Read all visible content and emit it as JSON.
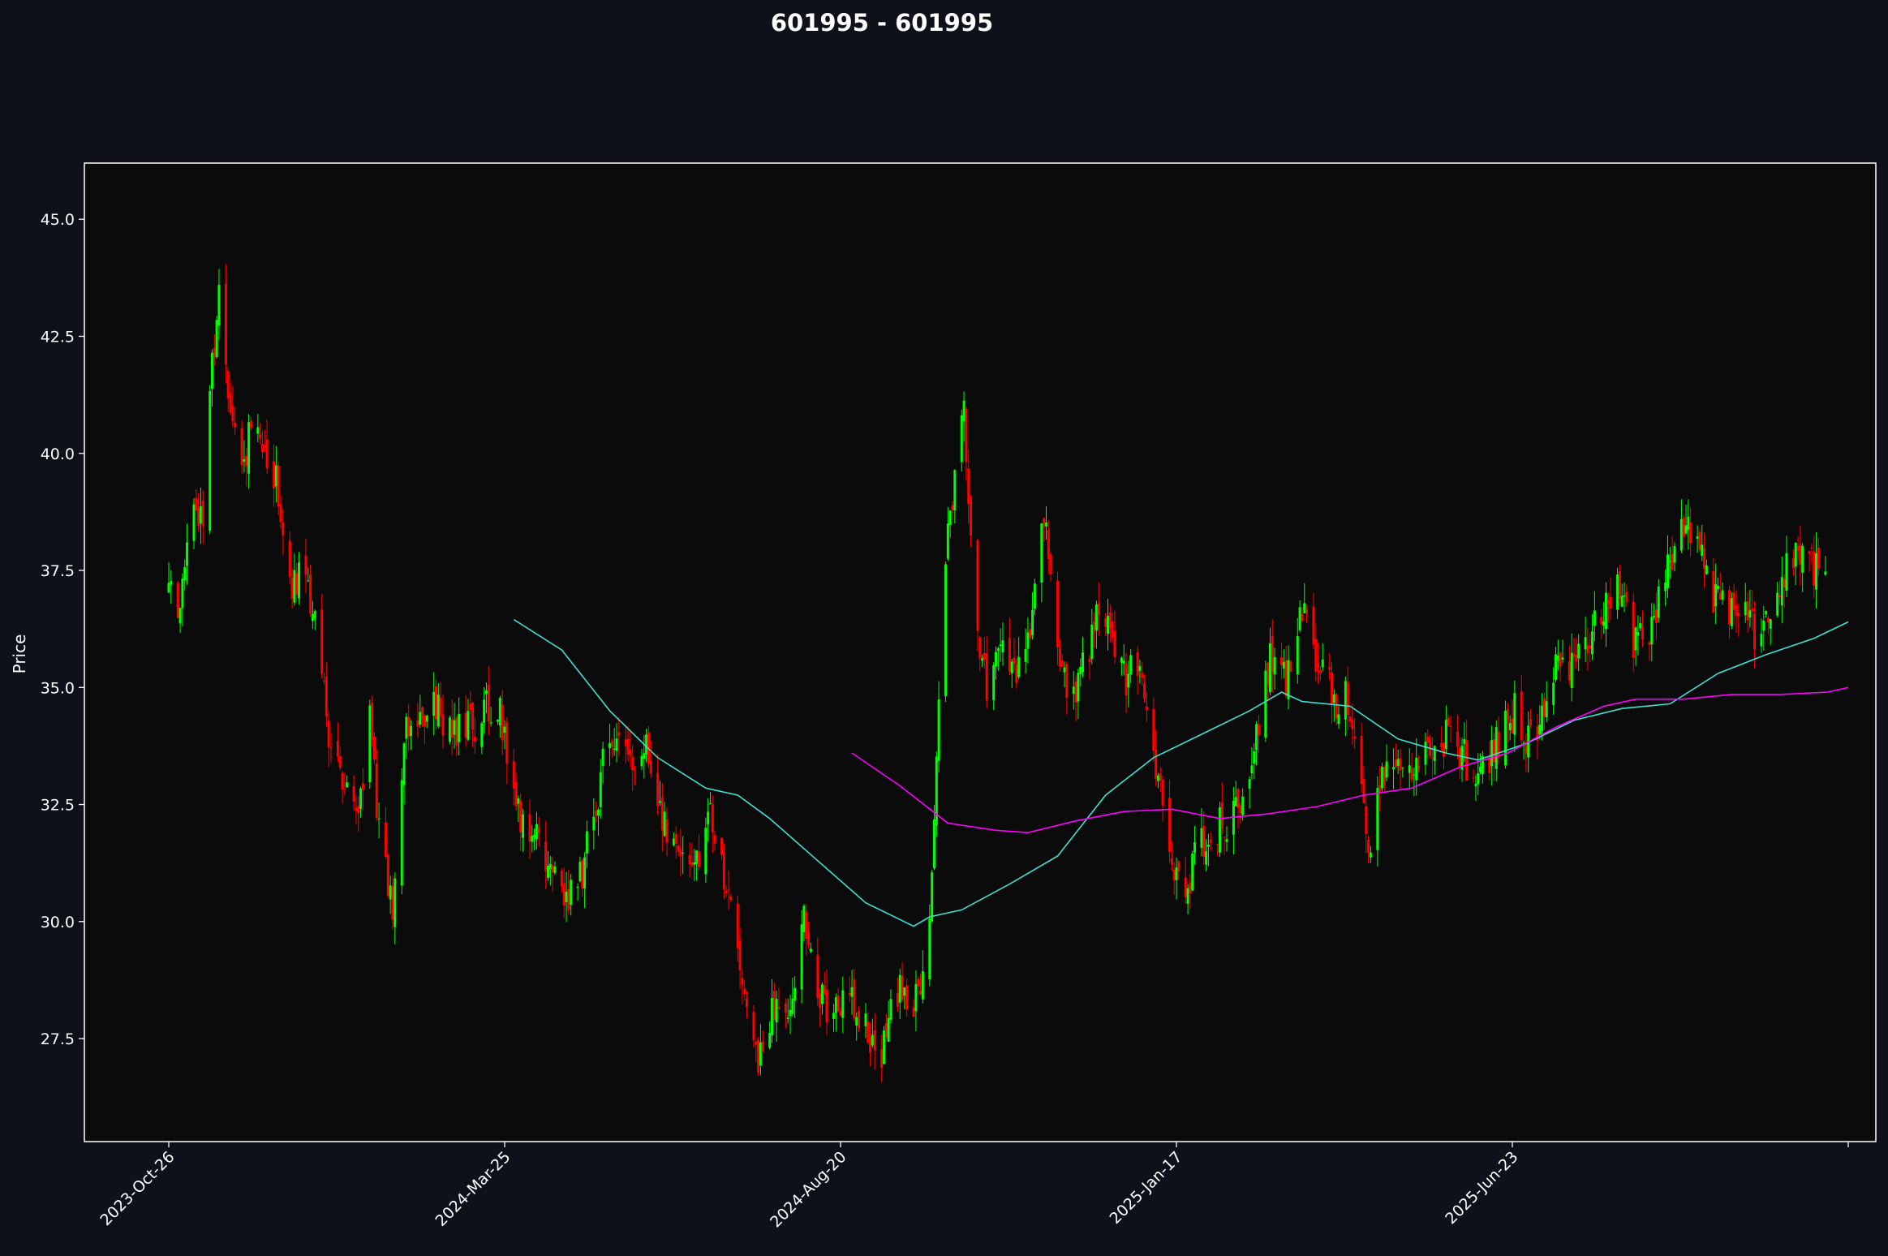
{
  "chart_data": {
    "type": "candlestick",
    "title": "601995 - 601995",
    "xlabel": "",
    "ylabel": "Price",
    "ylim": [
      25.3,
      46.2
    ],
    "y_ticks": [
      "27.5",
      "30.0",
      "32.5",
      "35.0",
      "37.5",
      "40.0",
      "42.5",
      "45.0"
    ],
    "x_ticks": [
      "2023-Oct-26",
      "2024-Mar-25",
      "2024-Aug-20",
      "2025-Jan-17",
      "2025-Jun-23",
      ""
    ],
    "x_start": "2023-10-26",
    "x_end": "2025-10-30",
    "grid": false,
    "colors": {
      "background": "#0e111a",
      "plot_background": "#0b0b0b",
      "axes": "#ffffff",
      "up": "#00ff00",
      "down": "#ff0000",
      "ma_short": "#40e0d0",
      "ma_long": "#ff00ff"
    },
    "price_path": [
      [
        "2023-10-26",
        37.0
      ],
      [
        "2023-10-31",
        36.9
      ],
      [
        "2023-11-06",
        38.8
      ],
      [
        "2023-11-10",
        38.8
      ],
      [
        "2023-11-14",
        42.0
      ],
      [
        "2023-11-17",
        43.2
      ],
      [
        "2023-11-22",
        41.2
      ],
      [
        "2023-11-27",
        39.8
      ],
      [
        "2023-12-01",
        40.5
      ],
      [
        "2023-12-07",
        40.0
      ],
      [
        "2023-12-13",
        39.2
      ],
      [
        "2023-12-18",
        37.2
      ],
      [
        "2023-12-25",
        37.5
      ],
      [
        "2023-12-29",
        36.5
      ],
      [
        "2024-01-04",
        34.0
      ],
      [
        "2024-01-10",
        33.2
      ],
      [
        "2024-01-16",
        32.0
      ],
      [
        "2024-01-22",
        34.3
      ],
      [
        "2024-01-26",
        32.0
      ],
      [
        "2024-02-01",
        30.0
      ],
      [
        "2024-02-06",
        34.0
      ],
      [
        "2024-02-19",
        34.5
      ],
      [
        "2024-02-26",
        34.3
      ],
      [
        "2024-03-04",
        34.0
      ],
      [
        "2024-03-11",
        34.5
      ],
      [
        "2024-03-19",
        34.5
      ],
      [
        "2024-03-25",
        32.5
      ],
      [
        "2024-04-02",
        32.0
      ],
      [
        "2024-04-09",
        31.0
      ],
      [
        "2024-04-17",
        30.5
      ],
      [
        "2024-04-24",
        31.0
      ],
      [
        "2024-05-06",
        34.0
      ],
      [
        "2024-05-14",
        33.5
      ],
      [
        "2024-05-22",
        33.8
      ],
      [
        "2024-05-29",
        32.0
      ],
      [
        "2024-06-05",
        31.5
      ],
      [
        "2024-06-13",
        31.5
      ],
      [
        "2024-06-20",
        32.3
      ],
      [
        "2024-06-27",
        30.5
      ],
      [
        "2024-07-04",
        28.8
      ],
      [
        "2024-07-10",
        27.2
      ],
      [
        "2024-07-17",
        28.2
      ],
      [
        "2024-07-23",
        28.0
      ],
      [
        "2024-07-30",
        30.0
      ],
      [
        "2024-08-06",
        28.5
      ],
      [
        "2024-08-13",
        28.0
      ],
      [
        "2024-08-20",
        28.5
      ],
      [
        "2024-08-27",
        27.5
      ],
      [
        "2024-09-02",
        27.3
      ],
      [
        "2024-09-09",
        28.5
      ],
      [
        "2024-09-18",
        28.3
      ],
      [
        "2024-09-24",
        30.8
      ],
      [
        "2024-09-30",
        38.0
      ],
      [
        "2024-10-08",
        41.0
      ],
      [
        "2024-10-14",
        36.0
      ],
      [
        "2024-10-18",
        35.0
      ],
      [
        "2024-10-25",
        36.2
      ],
      [
        "2024-10-31",
        35.0
      ],
      [
        "2024-11-06",
        36.5
      ],
      [
        "2024-11-12",
        38.5
      ],
      [
        "2024-11-18",
        36.0
      ],
      [
        "2024-11-22",
        34.7
      ],
      [
        "2024-11-29",
        35.3
      ],
      [
        "2024-12-05",
        36.5
      ],
      [
        "2024-12-11",
        36.0
      ],
      [
        "2024-12-17",
        35.2
      ],
      [
        "2024-12-24",
        35.5
      ],
      [
        "2024-12-31",
        33.5
      ],
      [
        "2025-01-07",
        31.0
      ],
      [
        "2025-01-14",
        30.8
      ],
      [
        "2025-01-17",
        31.5
      ],
      [
        "2025-01-24",
        31.8
      ],
      [
        "2025-02-05",
        32.5
      ],
      [
        "2025-02-12",
        33.5
      ],
      [
        "2025-02-19",
        35.8
      ],
      [
        "2025-02-26",
        35.0
      ],
      [
        "2025-03-05",
        36.5
      ],
      [
        "2025-03-12",
        35.5
      ],
      [
        "2025-03-19",
        34.8
      ],
      [
        "2025-03-26",
        34.7
      ],
      [
        "2025-04-03",
        31.5
      ],
      [
        "2025-04-09",
        33.0
      ],
      [
        "2025-04-16",
        33.5
      ],
      [
        "2025-04-23",
        33.0
      ],
      [
        "2025-05-01",
        33.8
      ],
      [
        "2025-05-08",
        34.0
      ],
      [
        "2025-05-15",
        33.5
      ],
      [
        "2025-05-22",
        33.0
      ],
      [
        "2025-05-29",
        33.8
      ],
      [
        "2025-06-06",
        34.5
      ],
      [
        "2025-06-13",
        33.8
      ],
      [
        "2025-06-23",
        35.5
      ],
      [
        "2025-06-30",
        35.3
      ],
      [
        "2025-07-07",
        35.8
      ],
      [
        "2025-07-14",
        36.5
      ],
      [
        "2025-07-21",
        37.2
      ],
      [
        "2025-07-28",
        36.0
      ],
      [
        "2025-08-04",
        36.3
      ],
      [
        "2025-08-11",
        37.5
      ],
      [
        "2025-08-18",
        38.5
      ],
      [
        "2025-08-25",
        38.5
      ],
      [
        "2025-09-01",
        37.0
      ],
      [
        "2025-09-08",
        36.8
      ],
      [
        "2025-09-15",
        36.5
      ],
      [
        "2025-09-22",
        36.0
      ],
      [
        "2025-09-29",
        37.0
      ],
      [
        "2025-10-06",
        37.8
      ],
      [
        "2025-10-13",
        37.5
      ],
      [
        "2025-10-20",
        37.8
      ]
    ],
    "series": [
      {
        "points": [
          [
            "2024-03-25",
            36.45
          ],
          [
            "2024-04-15",
            35.8
          ],
          [
            "2024-05-06",
            34.5
          ],
          [
            "2024-05-27",
            33.5
          ],
          [
            "2024-06-17",
            32.85
          ],
          [
            "2024-07-01",
            32.7
          ],
          [
            "2024-07-15",
            32.2
          ],
          [
            "2024-08-05",
            31.3
          ],
          [
            "2024-08-26",
            30.4
          ],
          [
            "2024-09-16",
            29.9
          ],
          [
            "2024-09-23",
            30.1
          ],
          [
            "2024-10-07",
            30.25
          ],
          [
            "2024-10-28",
            30.8
          ],
          [
            "2024-11-18",
            31.4
          ],
          [
            "2024-12-09",
            32.7
          ],
          [
            "2024-12-30",
            33.5
          ],
          [
            "2025-01-20",
            34.0
          ],
          [
            "2025-02-10",
            34.5
          ],
          [
            "2025-02-24",
            34.9
          ],
          [
            "2025-03-05",
            34.7
          ],
          [
            "2025-03-26",
            34.6
          ],
          [
            "2025-04-16",
            33.9
          ],
          [
            "2025-05-07",
            33.6
          ],
          [
            "2025-05-21",
            33.45
          ],
          [
            "2025-06-11",
            33.8
          ],
          [
            "2025-07-02",
            34.3
          ],
          [
            "2025-07-23",
            34.55
          ],
          [
            "2025-08-13",
            34.65
          ],
          [
            "2025-09-03",
            35.3
          ],
          [
            "2025-09-24",
            35.7
          ],
          [
            "2025-10-15",
            36.05
          ],
          [
            "2025-10-30",
            36.4
          ]
        ]
      },
      {
        "points": [
          [
            "2024-08-20",
            33.6
          ],
          [
            "2024-09-10",
            32.9
          ],
          [
            "2024-10-01",
            32.1
          ],
          [
            "2024-10-22",
            31.95
          ],
          [
            "2024-11-05",
            31.9
          ],
          [
            "2024-11-26",
            32.15
          ],
          [
            "2024-12-17",
            32.35
          ],
          [
            "2025-01-07",
            32.4
          ],
          [
            "2025-01-28",
            32.2
          ],
          [
            "2025-02-18",
            32.3
          ],
          [
            "2025-03-11",
            32.45
          ],
          [
            "2025-04-01",
            32.7
          ],
          [
            "2025-04-22",
            32.85
          ],
          [
            "2025-05-13",
            33.3
          ],
          [
            "2025-06-03",
            33.6
          ],
          [
            "2025-06-24",
            34.15
          ],
          [
            "2025-07-15",
            34.6
          ],
          [
            "2025-07-29",
            34.75
          ],
          [
            "2025-08-19",
            34.75
          ],
          [
            "2025-09-09",
            34.85
          ],
          [
            "2025-09-30",
            34.85
          ],
          [
            "2025-10-21",
            34.9
          ],
          [
            "2025-10-30",
            35.0
          ]
        ]
      }
    ]
  }
}
